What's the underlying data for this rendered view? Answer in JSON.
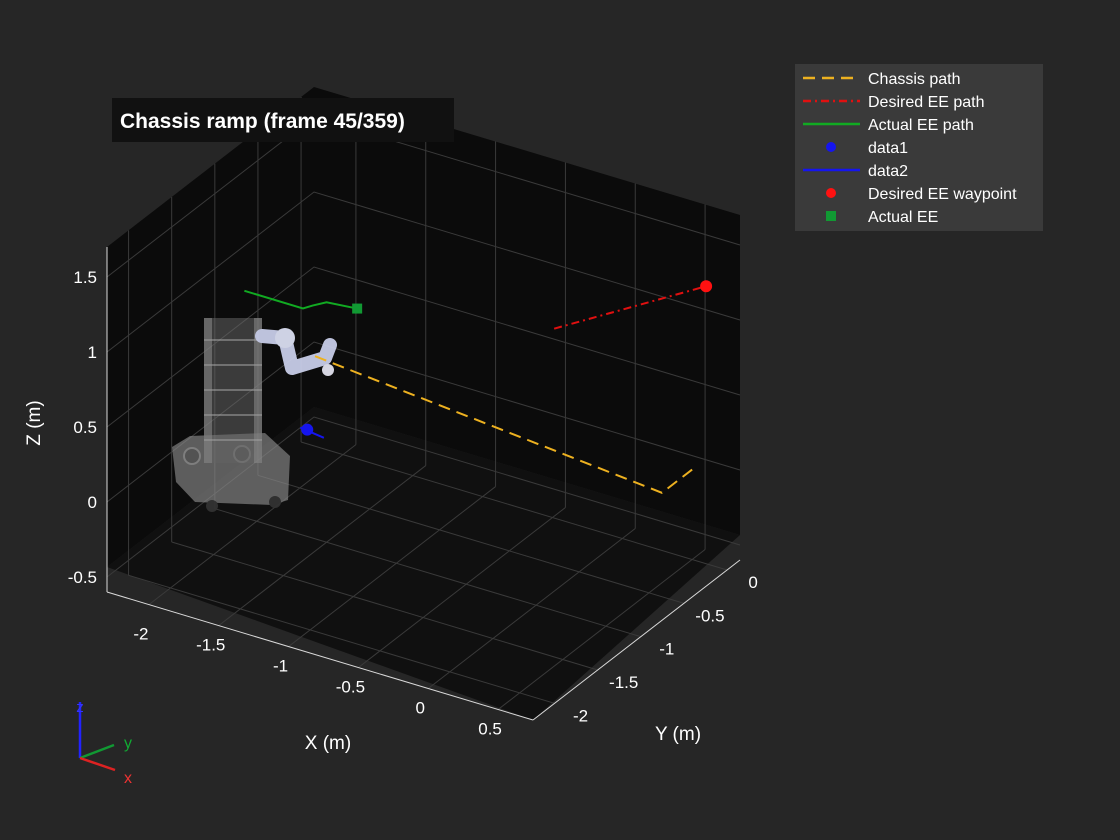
{
  "chart_data": {
    "type": "line",
    "title": "Chassis ramp (frame 45/359)",
    "xlabel": "X (m)",
    "ylabel": "Y (m)",
    "zlabel": "Z (m)",
    "grid": true,
    "legend_position": "top-right, outside axes",
    "xlim": [
      -2.3,
      0.75
    ],
    "ylim": [
      -2.25,
      0.15
    ],
    "zlim": [
      -0.6,
      1.7
    ],
    "x_ticks": [
      "-2",
      "-1.5",
      "-1",
      "-0.5",
      "0",
      "0.5"
    ],
    "y_ticks": [
      "-2",
      "-1.5",
      "-1",
      "-0.5",
      "0"
    ],
    "z_ticks": [
      "-0.5",
      "0",
      "0.5",
      "1",
      "1.5"
    ],
    "series": [
      {
        "name": "Chassis path",
        "color": "#EDB120",
        "style": "dashed",
        "x": [
          -2.2,
          0.5,
          0.5
        ],
        "y": [
          0.0,
          -0.35,
          0.0
        ],
        "z": [
          0.0,
          0.0,
          0.0
        ]
      },
      {
        "name": "Desired EE path",
        "color": "#E01010",
        "style": "dash-dot",
        "x": [
          0.5,
          0.6
        ],
        "y": [
          -1.6,
          0.0
        ],
        "z": [
          1.65,
          1.25
        ]
      },
      {
        "name": "Actual EE path",
        "color": "#11AA22",
        "style": "solid",
        "x": [
          -2.15,
          -1.7,
          -1.6,
          -1.5,
          -1.25
        ],
        "y": [
          -0.9,
          -0.95,
          -1.0,
          -1.0,
          -1.05
        ],
        "z": [
          0.85,
          0.88,
          0.95,
          1.0,
          1.05
        ]
      },
      {
        "name": "data1",
        "color": "#1515EE",
        "marker": "circle",
        "x": [
          -1.7
        ],
        "y": [
          -0.9
        ],
        "z": [
          0.05
        ]
      },
      {
        "name": "data2",
        "color": "#1515EE",
        "style": "solid",
        "x": [
          -1.75,
          -1.55
        ],
        "y": [
          -0.9,
          -0.95
        ],
        "z": [
          0.05,
          0.06
        ]
      },
      {
        "name": "Desired EE waypoint",
        "color": "#FF1111",
        "marker": "circle",
        "x": [
          0.6
        ],
        "y": [
          0.0
        ],
        "z": [
          1.25
        ]
      },
      {
        "name": "Actual EE",
        "color": "#119933",
        "marker": "square",
        "x": [
          -1.25
        ],
        "y": [
          -1.05
        ],
        "z": [
          1.05
        ]
      }
    ],
    "triad_labels": [
      "z",
      "y",
      "x"
    ]
  },
  "colors": {
    "figure_bg": "#262626",
    "axes_bg": "#0b0b0b",
    "grid": "#3a3a3a",
    "text": "#ffffff",
    "robot": "#c9cfe6",
    "legend_bg": "#3a3a3a"
  }
}
